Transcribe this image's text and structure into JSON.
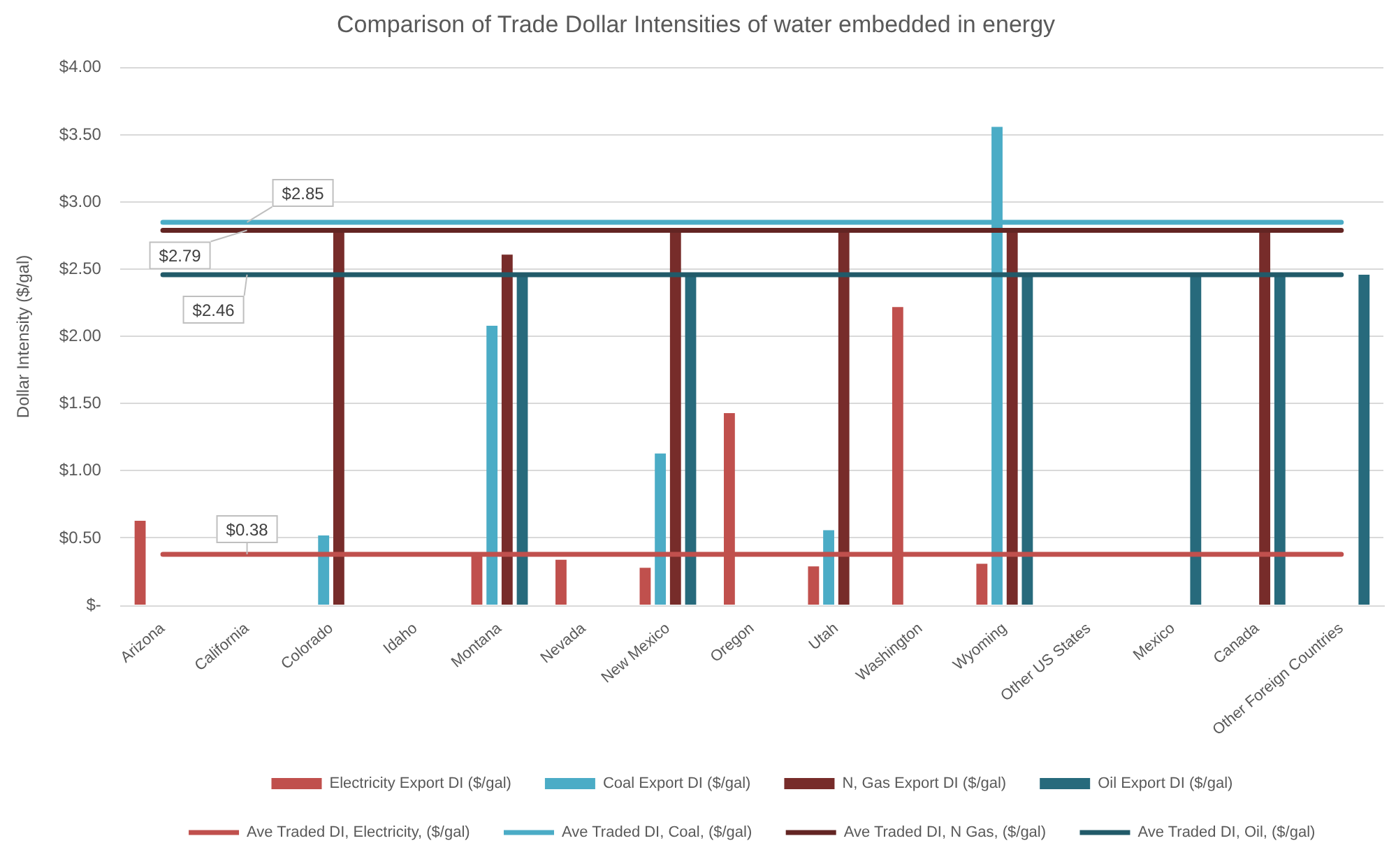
{
  "chart_data": {
    "type": "bar",
    "title": "Comparison of Trade Dollar Intensities of water embedded in energy",
    "ylabel": "Dollar Intensity ($/gal)",
    "categories": [
      "Arizona",
      "California",
      "Colorado",
      "Idaho",
      "Montana",
      "Nevada",
      "New Mexico",
      "Oregon",
      "Utah",
      "Washington",
      "Wyoming",
      "Other US States",
      "Mexico",
      "Canada",
      "Other Foreign Countries"
    ],
    "series": [
      {
        "name": "Electricity Export DI ($/gal)",
        "color": "#c0504d",
        "values": [
          0.63,
          null,
          null,
          null,
          0.39,
          0.34,
          0.28,
          1.43,
          0.29,
          2.22,
          0.31,
          null,
          null,
          null,
          null
        ]
      },
      {
        "name": "Coal Export DI ($/gal)",
        "color": "#4bacc6",
        "values": [
          null,
          null,
          0.52,
          null,
          2.08,
          null,
          1.13,
          null,
          0.56,
          null,
          3.56,
          null,
          null,
          null,
          null
        ]
      },
      {
        "name": "N, Gas Export DI ($/gal)",
        "color": "#772c2a",
        "values": [
          null,
          null,
          2.79,
          null,
          2.61,
          null,
          2.79,
          null,
          2.79,
          null,
          2.79,
          null,
          null,
          2.79,
          null
        ]
      },
      {
        "name": "Oil Export DI ($/gal)",
        "color": "#276a7c",
        "values": [
          null,
          null,
          null,
          null,
          2.46,
          null,
          2.46,
          null,
          null,
          null,
          2.46,
          null,
          2.46,
          2.46,
          2.46
        ]
      },
      {
        "name": "Ave Traded DI, Electricity, ($/gal)",
        "type": "line",
        "color": "#c0504d",
        "values": [
          0.38,
          0.38,
          0.38,
          0.38,
          0.38,
          0.38,
          0.38,
          0.38,
          0.38,
          0.38,
          0.38,
          0.38,
          0.38,
          0.38,
          0.38
        ],
        "value_labels": [
          null,
          "$0.38",
          null,
          null,
          null,
          null,
          null,
          null,
          null,
          null,
          null,
          null,
          null,
          null,
          null
        ]
      },
      {
        "name": "Ave Traded DI, Coal, ($/gal)",
        "type": "line",
        "color": "#4bacc6",
        "values": [
          2.85,
          2.85,
          2.85,
          2.85,
          2.85,
          2.85,
          2.85,
          2.85,
          2.85,
          2.85,
          2.85,
          2.85,
          2.85,
          2.85,
          2.85
        ],
        "value_labels": [
          null,
          "$2.85",
          null,
          null,
          null,
          null,
          null,
          null,
          null,
          null,
          null,
          null,
          null,
          null,
          null
        ]
      },
      {
        "name": "Ave Traded DI, N Gas, ($/gal)",
        "type": "line",
        "color": "#632523",
        "values": [
          2.79,
          2.79,
          2.79,
          2.79,
          2.79,
          2.79,
          2.79,
          2.79,
          2.79,
          2.79,
          2.79,
          2.79,
          2.79,
          2.79,
          2.79
        ],
        "value_labels": [
          null,
          "$2.79",
          null,
          null,
          null,
          null,
          null,
          null,
          null,
          null,
          null,
          null,
          null,
          null,
          null
        ]
      },
      {
        "name": "Ave Traded DI, Oil, ($/gal)",
        "type": "line",
        "color": "#215a69",
        "values": [
          2.46,
          2.46,
          2.46,
          2.46,
          2.46,
          2.46,
          2.46,
          2.46,
          2.46,
          2.46,
          2.46,
          2.46,
          2.46,
          2.46,
          2.46
        ],
        "value_labels": [
          null,
          "$2.46",
          null,
          null,
          null,
          null,
          null,
          null,
          null,
          null,
          null,
          null,
          null,
          null,
          null
        ]
      }
    ],
    "ylim": [
      0,
      4
    ],
    "yticks": [
      {
        "value": 0,
        "label": "$-"
      },
      {
        "value": 0.5,
        "label": "$0.50"
      },
      {
        "value": 1,
        "label": "$1.00"
      },
      {
        "value": 1.5,
        "label": "$1.50"
      },
      {
        "value": 2,
        "label": "$2.00"
      },
      {
        "value": 2.5,
        "label": "$2.50"
      },
      {
        "value": 3,
        "label": "$3.00"
      },
      {
        "value": 3.5,
        "label": "$3.50"
      },
      {
        "value": 4,
        "label": "$4.00"
      }
    ],
    "grid": "y",
    "legend": "bottom",
    "marker": "none",
    "line_style": "solid"
  }
}
